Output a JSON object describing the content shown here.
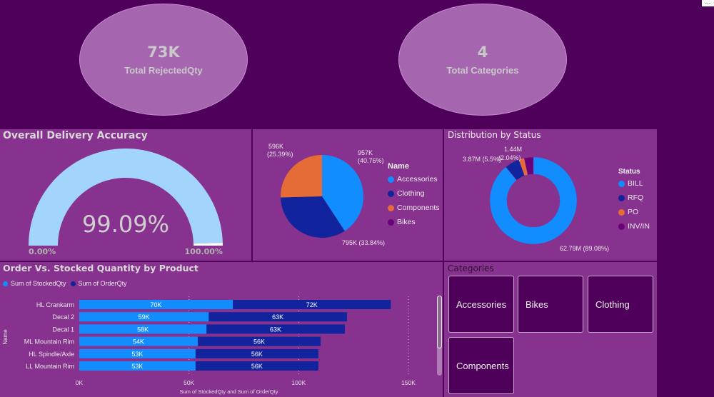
{
  "kpis": [
    {
      "value": "73K",
      "label": "Total RejectedQty"
    },
    {
      "value": "4",
      "label": "Total Categories"
    }
  ],
  "more_options_label": "...",
  "gauge": {
    "title": "Overall Delivery Accuracy",
    "value_label": "99.09%",
    "min_label": "0.00%",
    "max_label": "100.00%",
    "value": 0.9909,
    "fill_color": "#a3d4fb"
  },
  "pie": {
    "legend_title": "Name",
    "slices": [
      {
        "name": "Accessories",
        "value_label": "957K",
        "pct_label": "(40.76%)",
        "pct": 40.76,
        "color": "#118dff"
      },
      {
        "name": "Clothing",
        "value_label": "795K",
        "pct_label": "(33.84%)",
        "pct": 33.84,
        "color": "#12239e"
      },
      {
        "name": "Components",
        "value_label": "596K",
        "pct_label": "(25.39%)",
        "pct": 25.39,
        "color": "#e66c37"
      },
      {
        "name": "Bikes",
        "value_label": "",
        "pct_label": "",
        "pct": 0.01,
        "color": "#6b007b"
      }
    ]
  },
  "donut": {
    "title": "Distribution by Status",
    "legend_title": "Status",
    "slices": [
      {
        "name": "BILL",
        "label": "62.79M (89.08%)",
        "pct": 89.08,
        "color": "#118dff"
      },
      {
        "name": "RFQ",
        "label": "3.87M (5.5%)",
        "pct": 5.5,
        "color": "#12239e"
      },
      {
        "name": "PO",
        "label": "1.44M (2.04%)",
        "pct": 2.04,
        "color": "#e66c37"
      },
      {
        "name": "INV/IN",
        "label": "",
        "pct": 3.38,
        "color": "#6b007b"
      }
    ]
  },
  "chart_data": {
    "type": "bar",
    "title": "Order Vs. Stocked Quantity by Product",
    "xlabel": "Sum of StockedQty and Sum of OrderQty",
    "ylabel": "Name",
    "xlim": [
      0,
      150000
    ],
    "xticks": [
      "0K",
      "50K",
      "100K",
      "150K"
    ],
    "xtick_values": [
      0,
      50000,
      100000,
      150000
    ],
    "categories": [
      "HL Crankarm",
      "Decal 2",
      "Decal 1",
      "ML Mountain Rim",
      "HL Spindle/Axle",
      "LL Mountain Rim"
    ],
    "series": [
      {
        "name": "Sum of StockedQty",
        "color": "#118dff",
        "values": [
          70000,
          59000,
          58000,
          54000,
          53000,
          53000
        ],
        "labels": [
          "70K",
          "59K",
          "58K",
          "54K",
          "53K",
          "53K"
        ]
      },
      {
        "name": "Sum of OrderQty",
        "color": "#12239e",
        "values": [
          72000,
          63000,
          63000,
          56000,
          56000,
          56000
        ],
        "labels": [
          "72K",
          "63K",
          "63K",
          "56K",
          "56K",
          "56K"
        ]
      }
    ],
    "stacked": true,
    "grid": true,
    "legend": "top-left"
  },
  "categories_slicer": {
    "title": "Categories",
    "items": [
      "Accessories",
      "Bikes",
      "Clothing",
      "Components"
    ]
  }
}
